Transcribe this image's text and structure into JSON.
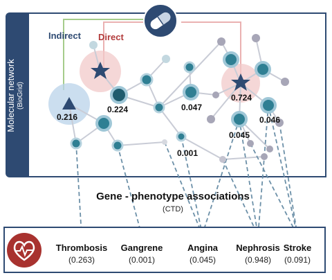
{
  "network": {
    "title": "Molecular network",
    "source": "(BioGrid)",
    "indirect_label": "Indirect",
    "direct_label": "Direct",
    "scores": [
      "0.216",
      "0.224",
      "0.047",
      "0.724",
      "0.045",
      "0.046",
      "0.001"
    ]
  },
  "associations": {
    "title": "Gene - phenotype associations",
    "source": "(CTD)"
  },
  "phenotypes": [
    {
      "name": "Thrombosis",
      "value": "(0.263)"
    },
    {
      "name": "Gangrene",
      "value": "(0.001)"
    },
    {
      "name": "Angina",
      "value": "(0.045)"
    },
    {
      "name": "Nephrosis",
      "value": "(0.948)"
    },
    {
      "name": "Stroke",
      "value": "(0.091)"
    }
  ],
  "icons": {
    "drug": "pill-icon",
    "disease": "heart-pulse-icon",
    "target_direct": "star-icon",
    "target_indirect": "triangle-icon"
  },
  "colors": {
    "navy": "#2e4a72",
    "direct_red": "#b23b3b",
    "indirect_green": "#8fbf6e",
    "node_teal": "#2f7f93",
    "node_dark": "#1f5c6e",
    "node_grey": "#a7a6b7"
  }
}
